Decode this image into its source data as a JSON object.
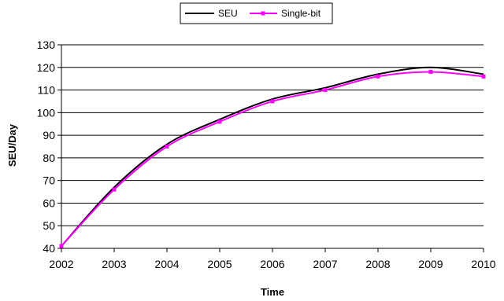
{
  "chart_data": {
    "type": "line",
    "xlabel": "Time",
    "ylabel": "SEU/Day",
    "xlim": [
      2002,
      2010
    ],
    "ylim": [
      40,
      130
    ],
    "y_ticks": [
      40,
      50,
      60,
      70,
      80,
      90,
      100,
      110,
      120,
      130
    ],
    "x_ticks": [
      "2002",
      "2003",
      "2004",
      "2005",
      "2006",
      "2007",
      "2008",
      "2009",
      "2010"
    ],
    "grid": "horizontal",
    "legend": "top",
    "series": [
      {
        "name": "SEU",
        "color": "#000000",
        "marker": "none",
        "x": [
          2002,
          2003,
          2004,
          2005,
          2006,
          2007,
          2008,
          2009,
          2010
        ],
        "values": [
          41,
          67,
          86,
          97,
          106,
          111,
          117,
          120,
          117
        ]
      },
      {
        "name": "Single-bit",
        "color": "#ff00ff",
        "marker": "square",
        "x": [
          2002,
          2003,
          2004,
          2005,
          2006,
          2007,
          2008,
          2009,
          2010
        ],
        "values": [
          41,
          66,
          85,
          96,
          105,
          110,
          116,
          118,
          116
        ]
      }
    ]
  }
}
